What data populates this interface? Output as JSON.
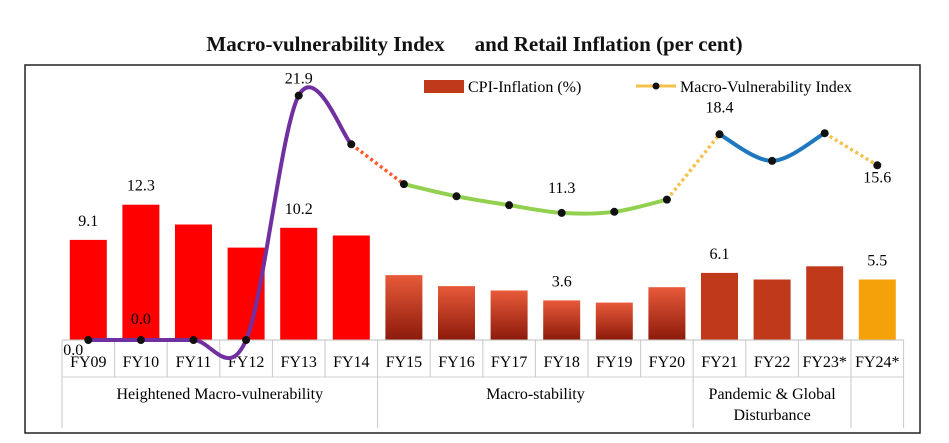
{
  "title": {
    "part1": "Macro-vulnerability Index",
    "part2": "and Retail Inflation (per cent)"
  },
  "legend": {
    "bar_label": "CPI-Inflation (%)",
    "line_label": "Macro-Vulnerability Index"
  },
  "colors": {
    "heightened_bar": "#ff0000",
    "stability_bar_top": "#e85a3a",
    "stability_bar_bottom": "#8c1a0a",
    "pandemic_bar": "#c0391b",
    "fy24_bar": "#f5a20a",
    "line_heightened": "#7030a0",
    "line_stability": "#92d050",
    "line_pandemic": "#1f77c0",
    "line_transition_1": "#ff5a2a",
    "line_transition_2": "#f5c14a",
    "point": "#111111"
  },
  "chart_data": {
    "type": "bar",
    "categories": [
      "FY09",
      "FY10",
      "FY11",
      "FY12",
      "FY13",
      "FY14",
      "FY15",
      "FY16",
      "FY17",
      "FY18",
      "FY19",
      "FY20",
      "FY21",
      "FY22",
      "FY23*",
      "FY24*"
    ],
    "series": [
      {
        "name": "CPI-Inflation (%)",
        "type": "bar",
        "values": [
          9.1,
          12.3,
          10.5,
          8.4,
          10.2,
          9.5,
          5.9,
          4.9,
          4.5,
          3.6,
          3.4,
          4.8,
          6.1,
          5.5,
          6.7,
          5.5
        ],
        "data_labels": {
          "0": "9.1",
          "1": "12.3",
          "4": "10.2",
          "9": "3.6",
          "12": "6.1",
          "15": "5.5"
        }
      },
      {
        "name": "Macro-Vulnerability Index",
        "type": "line",
        "values": [
          0.0,
          0.0,
          0.0,
          0.0,
          21.9,
          17.5,
          13.9,
          12.8,
          12.0,
          11.3,
          11.4,
          12.5,
          18.4,
          16.0,
          18.5,
          15.6
        ],
        "data_labels": {
          "0": "0.0",
          "1": "0.0",
          "4": "21.9",
          "9": "11.3",
          "12": "18.4",
          "15": "15.6"
        }
      }
    ],
    "groups": [
      {
        "label": "Heightened Macro-vulnerability",
        "from": 0,
        "to": 5
      },
      {
        "label": "Macro-stability",
        "from": 6,
        "to": 11
      },
      {
        "label": "Pandemic & Global Disturbance",
        "from": 12,
        "to": 14
      },
      {
        "label": "",
        "from": 15,
        "to": 15
      }
    ],
    "ylim": [
      0,
      24
    ],
    "legend_position": "top",
    "grid": false
  }
}
